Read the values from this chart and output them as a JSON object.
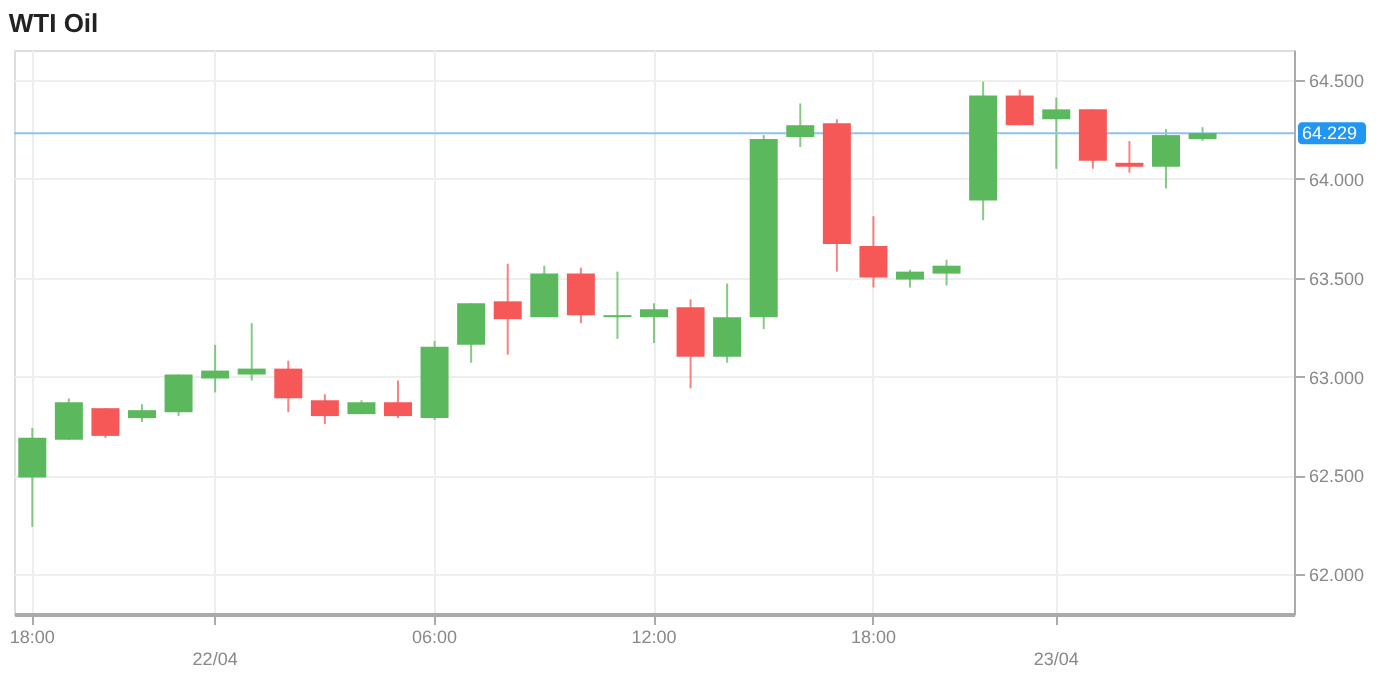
{
  "chart_data": {
    "type": "candlestick",
    "title": "WTI Oil",
    "categories": [
      "18:00",
      null,
      null,
      null,
      null,
      "22/04",
      null,
      null,
      null,
      null,
      null,
      "06:00",
      null,
      null,
      null,
      null,
      null,
      "12:00",
      null,
      null,
      null,
      null,
      null,
      "18:00",
      null,
      null,
      null,
      null,
      "23/04",
      null,
      null,
      null,
      null
    ],
    "ohlc": [
      [
        62.49,
        62.74,
        62.24,
        62.69
      ],
      [
        62.68,
        62.89,
        62.68,
        62.87
      ],
      [
        62.84,
        62.84,
        62.69,
        62.7
      ],
      [
        62.79,
        62.86,
        62.77,
        62.83
      ],
      [
        62.82,
        63.01,
        62.8,
        63.01
      ],
      [
        62.99,
        63.16,
        62.92,
        63.03
      ],
      [
        63.01,
        63.27,
        62.98,
        63.04
      ],
      [
        63.04,
        63.08,
        62.82,
        62.89
      ],
      [
        62.88,
        62.91,
        62.76,
        62.8
      ],
      [
        62.81,
        62.88,
        62.81,
        62.87
      ],
      [
        62.87,
        62.98,
        62.79,
        62.8
      ],
      [
        62.79,
        63.18,
        62.78,
        63.15
      ],
      [
        63.16,
        63.37,
        63.07,
        63.37
      ],
      [
        63.38,
        63.57,
        63.11,
        63.29
      ],
      [
        63.3,
        63.56,
        63.3,
        63.52
      ],
      [
        63.52,
        63.55,
        63.27,
        63.31
      ],
      [
        63.3,
        63.53,
        63.19,
        63.31
      ],
      [
        63.3,
        63.37,
        63.17,
        63.34
      ],
      [
        63.35,
        63.39,
        62.94,
        63.1
      ],
      [
        63.1,
        63.47,
        63.07,
        63.3
      ],
      [
        63.3,
        64.22,
        63.24,
        64.2
      ],
      [
        64.21,
        64.38,
        64.16,
        64.27
      ],
      [
        64.28,
        64.3,
        63.53,
        63.67
      ],
      [
        63.66,
        63.81,
        63.45,
        63.5
      ],
      [
        63.49,
        63.54,
        63.45,
        63.53
      ],
      [
        63.52,
        63.59,
        63.46,
        63.56
      ],
      [
        63.89,
        64.49,
        63.79,
        64.42
      ],
      [
        64.42,
        64.45,
        64.27,
        64.27
      ],
      [
        64.3,
        64.41,
        64.05,
        64.35
      ],
      [
        64.35,
        64.35,
        64.05,
        64.09
      ],
      [
        64.08,
        64.19,
        64.03,
        64.06
      ],
      [
        64.06,
        64.25,
        63.95,
        64.22
      ],
      [
        64.2,
        64.26,
        64.19,
        64.23
      ]
    ],
    "colors": [
      "#5cb85c",
      "#5cb85c",
      "#f65858",
      "#5cb85c",
      "#5cb85c",
      "#5cb85c",
      "#5cb85c",
      "#f65858",
      "#f65858",
      "#5cb85c",
      "#f65858",
      "#5cb85c",
      "#5cb85c",
      "#f65858",
      "#5cb85c",
      "#f65858",
      "#5cb85c",
      "#5cb85c",
      "#f65858",
      "#5cb85c",
      "#5cb85c",
      "#5cb85c",
      "#f65858",
      "#f65858",
      "#5cb85c",
      "#5cb85c",
      "#5cb85c",
      "#f65858",
      "#5cb85c",
      "#f65858",
      "#f65858",
      "#5cb85c",
      "#5cb85c"
    ],
    "ylim": [
      61.8,
      64.65
    ],
    "yticks": [
      {
        "value": 62.0,
        "label": "62.000"
      },
      {
        "value": 62.5,
        "label": "62.500"
      },
      {
        "value": 63.0,
        "label": "63.000"
      },
      {
        "value": 63.5,
        "label": "63.500"
      },
      {
        "value": 64.0,
        "label": "64.000"
      },
      {
        "value": 64.5,
        "label": "64.500"
      }
    ],
    "ref_lines": [
      {
        "axis": "y",
        "value": 64.229,
        "label": "64.229",
        "color": "#8ec3f0"
      }
    ],
    "grid": true
  }
}
